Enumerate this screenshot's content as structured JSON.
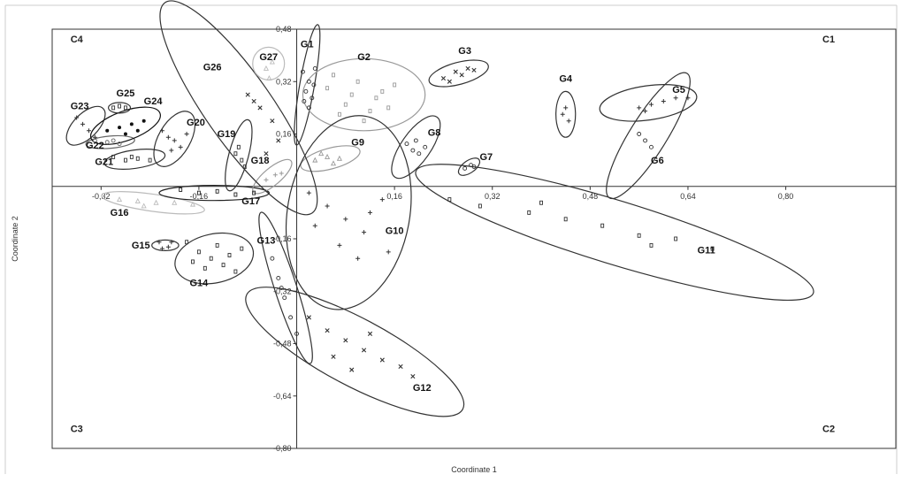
{
  "chart_data": {
    "type": "scatter",
    "title": "",
    "xlabel": "Coordinate 1",
    "ylabel": "Coordinate 2",
    "xlim": [
      -0.4,
      0.98
    ],
    "ylim": [
      -0.8,
      0.48
    ],
    "x_ticks": [
      {
        "v": -0.32,
        "label": "-0,32"
      },
      {
        "v": -0.16,
        "label": "-0,16"
      },
      {
        "v": 0.16,
        "label": "0,16"
      },
      {
        "v": 0.32,
        "label": "0,32"
      },
      {
        "v": 0.48,
        "label": "0,48"
      },
      {
        "v": 0.64,
        "label": "0,64"
      },
      {
        "v": 0.8,
        "label": "0,80"
      }
    ],
    "y_ticks": [
      {
        "v": 0.48,
        "label": "0,48"
      },
      {
        "v": 0.32,
        "label": "0,32"
      },
      {
        "v": 0.16,
        "label": "0,16"
      },
      {
        "v": -0.16,
        "label": "-0,16"
      },
      {
        "v": -0.32,
        "label": "-0,32"
      },
      {
        "v": -0.48,
        "label": "-0,48"
      },
      {
        "v": -0.64,
        "label": "-0,64"
      },
      {
        "v": -0.8,
        "label": "-0,80"
      }
    ],
    "quadrants": [
      {
        "label": "C1",
        "x": 0.86,
        "y": 0.44
      },
      {
        "label": "C2",
        "x": 0.86,
        "y": -0.75
      },
      {
        "label": "C3",
        "x": -0.37,
        "y": -0.75
      },
      {
        "label": "C4",
        "x": -0.37,
        "y": 0.44
      }
    ],
    "groups": [
      {
        "name": "G1",
        "cx": 0.017,
        "cy": 0.31,
        "rx": 0.1,
        "ry": 0.012,
        "angle": -80,
        "color": "#333333",
        "label_x": 0.017,
        "label_y": 0.425,
        "marker": "circle",
        "points": [
          [
            0.01,
            0.35
          ],
          [
            0.02,
            0.32
          ],
          [
            0.015,
            0.29
          ],
          [
            0.025,
            0.27
          ],
          [
            0.012,
            0.26
          ],
          [
            0.03,
            0.36
          ],
          [
            0.02,
            0.24
          ],
          [
            0.028,
            0.31
          ]
        ]
      },
      {
        "name": "G2",
        "cx": 0.11,
        "cy": 0.28,
        "rx": 0.1,
        "ry": 0.11,
        "angle": 0,
        "color": "#999999",
        "label_x": 0.11,
        "label_y": 0.385,
        "marker": "rect",
        "points": [
          [
            0.05,
            0.3
          ],
          [
            0.08,
            0.25
          ],
          [
            0.1,
            0.32
          ],
          [
            0.13,
            0.27
          ],
          [
            0.15,
            0.24
          ],
          [
            0.07,
            0.22
          ],
          [
            0.11,
            0.2
          ],
          [
            0.14,
            0.29
          ],
          [
            0.09,
            0.28
          ],
          [
            0.16,
            0.31
          ],
          [
            0.06,
            0.34
          ],
          [
            0.12,
            0.23
          ]
        ]
      },
      {
        "name": "G3",
        "cx": 0.265,
        "cy": 0.345,
        "rx": 0.05,
        "ry": 0.018,
        "angle": -15,
        "color": "#333333",
        "label_x": 0.275,
        "label_y": 0.405,
        "marker": "x",
        "points": [
          [
            0.24,
            0.33
          ],
          [
            0.26,
            0.35
          ],
          [
            0.27,
            0.34
          ],
          [
            0.28,
            0.36
          ],
          [
            0.25,
            0.32
          ],
          [
            0.29,
            0.355
          ]
        ]
      },
      {
        "name": "G4",
        "cx": 0.44,
        "cy": 0.22,
        "rx": 0.016,
        "ry": 0.07,
        "angle": 0,
        "color": "#333333",
        "label_x": 0.44,
        "label_y": 0.32,
        "marker": "plus",
        "points": [
          [
            0.44,
            0.24
          ],
          [
            0.445,
            0.2
          ],
          [
            0.435,
            0.22
          ]
        ]
      },
      {
        "name": "G5",
        "cx": 0.575,
        "cy": 0.255,
        "rx": 0.08,
        "ry": 0.028,
        "angle": -8,
        "color": "#333333",
        "label_x": 0.625,
        "label_y": 0.285,
        "marker": "plus",
        "points": [
          [
            0.56,
            0.24
          ],
          [
            0.58,
            0.25
          ],
          [
            0.6,
            0.26
          ],
          [
            0.62,
            0.27
          ],
          [
            0.64,
            0.27
          ],
          [
            0.57,
            0.23
          ]
        ]
      },
      {
        "name": "G6",
        "cx": 0.575,
        "cy": 0.155,
        "rx": 0.12,
        "ry": 0.03,
        "angle": -58,
        "color": "#333333",
        "label_x": 0.59,
        "label_y": 0.07,
        "marker": "circle",
        "points": [
          [
            0.56,
            0.16
          ],
          [
            0.57,
            0.14
          ],
          [
            0.58,
            0.12
          ]
        ]
      },
      {
        "name": "G7",
        "cx": 0.282,
        "cy": 0.06,
        "rx": 0.02,
        "ry": 0.01,
        "angle": -35,
        "color": "#333333",
        "label_x": 0.31,
        "label_y": 0.08,
        "marker": "circle",
        "points": [
          [
            0.275,
            0.055
          ],
          [
            0.285,
            0.065
          ],
          [
            0.29,
            0.06
          ]
        ]
      },
      {
        "name": "G8",
        "cx": 0.195,
        "cy": 0.12,
        "rx": 0.06,
        "ry": 0.024,
        "angle": -55,
        "color": "#333333",
        "label_x": 0.225,
        "label_y": 0.155,
        "marker": "circle",
        "points": [
          [
            0.18,
            0.13
          ],
          [
            0.19,
            0.11
          ],
          [
            0.2,
            0.1
          ],
          [
            0.21,
            0.12
          ],
          [
            0.195,
            0.14
          ]
        ]
      },
      {
        "name": "G9",
        "cx": 0.055,
        "cy": 0.085,
        "rx": 0.05,
        "ry": 0.017,
        "angle": -15,
        "color": "#999999",
        "label_x": 0.1,
        "label_y": 0.125,
        "marker": "triangle",
        "points": [
          [
            0.03,
            0.08
          ],
          [
            0.05,
            0.09
          ],
          [
            0.07,
            0.085
          ],
          [
            0.06,
            0.07
          ],
          [
            0.04,
            0.1
          ]
        ]
      },
      {
        "name": "G10",
        "cx": 0.085,
        "cy": -0.08,
        "rx": 0.16,
        "ry": 0.1,
        "angle": -80,
        "color": "#333333",
        "label_x": 0.16,
        "label_y": -0.145,
        "marker": "plus",
        "points": [
          [
            0.02,
            -0.02
          ],
          [
            0.05,
            -0.06
          ],
          [
            0.08,
            -0.1
          ],
          [
            0.11,
            -0.14
          ],
          [
            0.14,
            -0.04
          ],
          [
            0.1,
            -0.22
          ],
          [
            0.07,
            -0.18
          ],
          [
            0.12,
            -0.08
          ],
          [
            0.03,
            -0.12
          ],
          [
            0.15,
            -0.2
          ]
        ]
      },
      {
        "name": "G11",
        "cx": 0.52,
        "cy": -0.14,
        "rx": 0.34,
        "ry": 0.052,
        "angle": 17,
        "color": "#333333",
        "label_x": 0.67,
        "label_y": -0.205,
        "marker": "rect",
        "points": [
          [
            0.25,
            -0.04
          ],
          [
            0.3,
            -0.06
          ],
          [
            0.38,
            -0.08
          ],
          [
            0.44,
            -0.1
          ],
          [
            0.5,
            -0.12
          ],
          [
            0.56,
            -0.15
          ],
          [
            0.62,
            -0.16
          ],
          [
            0.68,
            -0.19
          ],
          [
            0.4,
            -0.05
          ],
          [
            0.58,
            -0.18
          ]
        ]
      },
      {
        "name": "G12",
        "cx": 0.095,
        "cy": -0.505,
        "rx": 0.2,
        "ry": 0.055,
        "angle": 28,
        "color": "#333333",
        "label_x": 0.205,
        "label_y": -0.625,
        "marker": "x",
        "points": [
          [
            0.02,
            -0.4
          ],
          [
            0.05,
            -0.44
          ],
          [
            0.08,
            -0.47
          ],
          [
            0.11,
            -0.5
          ],
          [
            0.14,
            -0.53
          ],
          [
            0.17,
            -0.55
          ],
          [
            0.19,
            -0.58
          ],
          [
            0.06,
            -0.52
          ],
          [
            0.12,
            -0.45
          ],
          [
            0.09,
            -0.56
          ]
        ]
      },
      {
        "name": "G13",
        "cx": -0.018,
        "cy": -0.31,
        "rx": 0.13,
        "ry": 0.018,
        "angle": 72,
        "color": "#333333",
        "label_x": -0.05,
        "label_y": -0.175,
        "marker": "circle",
        "points": [
          [
            -0.04,
            -0.22
          ],
          [
            -0.03,
            -0.28
          ],
          [
            -0.02,
            -0.34
          ],
          [
            -0.01,
            -0.4
          ],
          [
            0.0,
            -0.45
          ],
          [
            -0.025,
            -0.31
          ]
        ]
      },
      {
        "name": "G14",
        "cx": -0.135,
        "cy": -0.22,
        "rx": 0.065,
        "ry": 0.04,
        "angle": -12,
        "color": "#333333",
        "label_x": -0.16,
        "label_y": -0.305,
        "marker": "rect",
        "points": [
          [
            -0.18,
            -0.17
          ],
          [
            -0.16,
            -0.2
          ],
          [
            -0.14,
            -0.22
          ],
          [
            -0.12,
            -0.24
          ],
          [
            -0.1,
            -0.26
          ],
          [
            -0.15,
            -0.25
          ],
          [
            -0.13,
            -0.18
          ],
          [
            -0.11,
            -0.21
          ],
          [
            -0.17,
            -0.23
          ],
          [
            -0.09,
            -0.19
          ]
        ]
      },
      {
        "name": "G15",
        "cx": -0.215,
        "cy": -0.18,
        "rx": 0.022,
        "ry": 0.016,
        "angle": 0,
        "color": "#333333",
        "label_x": -0.255,
        "label_y": -0.19,
        "marker": "plus",
        "points": [
          [
            -0.225,
            -0.17
          ],
          [
            -0.21,
            -0.185
          ],
          [
            -0.205,
            -0.17
          ],
          [
            -0.22,
            -0.19
          ]
        ]
      },
      {
        "name": "G16",
        "cx": -0.235,
        "cy": -0.05,
        "rx": 0.085,
        "ry": 0.014,
        "angle": 8,
        "color": "#bbbbbb",
        "label_x": -0.29,
        "label_y": -0.09,
        "marker": "triangle",
        "points": [
          [
            -0.29,
            -0.04
          ],
          [
            -0.26,
            -0.045
          ],
          [
            -0.23,
            -0.05
          ],
          [
            -0.2,
            -0.05
          ],
          [
            -0.17,
            -0.055
          ],
          [
            -0.25,
            -0.06
          ]
        ]
      },
      {
        "name": "G17",
        "cx": -0.135,
        "cy": -0.02,
        "rx": 0.09,
        "ry": 0.023,
        "angle": 0,
        "color": "#222222",
        "label_x": -0.075,
        "label_y": -0.055,
        "marker": "rect",
        "points": [
          [
            -0.19,
            -0.01
          ],
          [
            -0.16,
            -0.02
          ],
          [
            -0.13,
            -0.015
          ],
          [
            -0.1,
            -0.025
          ],
          [
            -0.07,
            -0.02
          ]
        ]
      },
      {
        "name": "G18",
        "cx": -0.04,
        "cy": 0.03,
        "rx": 0.04,
        "ry": 0.014,
        "angle": -40,
        "color": "#999999",
        "label_x": -0.06,
        "label_y": 0.07,
        "marker": "plus",
        "points": [
          [
            -0.05,
            0.02
          ],
          [
            -0.035,
            0.035
          ],
          [
            -0.025,
            0.04
          ]
        ]
      },
      {
        "name": "G19",
        "cx": -0.095,
        "cy": 0.095,
        "rx": 0.06,
        "ry": 0.016,
        "angle": -75,
        "color": "#333333",
        "label_x": -0.115,
        "label_y": 0.15,
        "marker": "rect",
        "points": [
          [
            -0.1,
            0.1
          ],
          [
            -0.09,
            0.08
          ],
          [
            -0.095,
            0.12
          ],
          [
            -0.085,
            0.06
          ]
        ]
      },
      {
        "name": "G20",
        "cx": -0.2,
        "cy": 0.145,
        "rx": 0.05,
        "ry": 0.026,
        "angle": -60,
        "color": "#333333",
        "label_x": -0.165,
        "label_y": 0.185,
        "marker": "plus",
        "points": [
          [
            -0.22,
            0.17
          ],
          [
            -0.2,
            0.14
          ],
          [
            -0.19,
            0.12
          ],
          [
            -0.21,
            0.15
          ],
          [
            -0.18,
            0.16
          ],
          [
            -0.205,
            0.11
          ]
        ]
      },
      {
        "name": "G21",
        "cx": -0.265,
        "cy": 0.083,
        "rx": 0.05,
        "ry": 0.015,
        "angle": -8,
        "color": "#333333",
        "label_x": -0.315,
        "label_y": 0.065,
        "marker": "rect",
        "points": [
          [
            -0.3,
            0.09
          ],
          [
            -0.28,
            0.08
          ],
          [
            -0.26,
            0.085
          ],
          [
            -0.24,
            0.08
          ],
          [
            -0.27,
            0.09
          ]
        ]
      },
      {
        "name": "G22",
        "cx": -0.305,
        "cy": 0.135,
        "rx": 0.04,
        "ry": 0.01,
        "angle": -5,
        "color": "#666666",
        "label_x": -0.33,
        "label_y": 0.115,
        "marker": "circle",
        "points": [
          [
            -0.33,
            0.14
          ],
          [
            -0.31,
            0.135
          ],
          [
            -0.29,
            0.13
          ],
          [
            -0.3,
            0.14
          ]
        ]
      },
      {
        "name": "G23",
        "cx": -0.345,
        "cy": 0.185,
        "rx": 0.04,
        "ry": 0.02,
        "angle": -45,
        "color": "#333333",
        "label_x": -0.355,
        "label_y": 0.235,
        "marker": "plus",
        "points": [
          [
            -0.36,
            0.21
          ],
          [
            -0.35,
            0.19
          ],
          [
            -0.34,
            0.17
          ],
          [
            -0.33,
            0.15
          ]
        ]
      },
      {
        "name": "G24",
        "cx": -0.28,
        "cy": 0.185,
        "rx": 0.06,
        "ry": 0.024,
        "angle": -20,
        "color": "#111111",
        "label_x": -0.235,
        "label_y": 0.25,
        "marker": "dot",
        "points": [
          [
            -0.31,
            0.17
          ],
          [
            -0.29,
            0.18
          ],
          [
            -0.27,
            0.19
          ],
          [
            -0.25,
            0.2
          ],
          [
            -0.28,
            0.16
          ],
          [
            -0.26,
            0.17
          ]
        ]
      },
      {
        "name": "G25",
        "cx": -0.29,
        "cy": 0.24,
        "rx": 0.018,
        "ry": 0.009,
        "angle": 0,
        "color": "#333333",
        "label_x": -0.28,
        "label_y": 0.275,
        "marker": "rect",
        "points": [
          [
            -0.3,
            0.24
          ],
          [
            -0.29,
            0.245
          ],
          [
            -0.28,
            0.24
          ]
        ]
      },
      {
        "name": "G26",
        "cx": -0.095,
        "cy": 0.24,
        "rx": 0.21,
        "ry": 0.055,
        "angle": 55,
        "color": "#333333",
        "label_x": -0.138,
        "label_y": 0.355,
        "marker": "x",
        "points": [
          [
            -0.08,
            0.28
          ],
          [
            -0.06,
            0.24
          ],
          [
            -0.04,
            0.2
          ],
          [
            -0.03,
            0.14
          ],
          [
            -0.05,
            0.1
          ],
          [
            -0.07,
            0.26
          ]
        ]
      },
      {
        "name": "G27",
        "cx": -0.046,
        "cy": 0.375,
        "rx": 0.026,
        "ry": 0.05,
        "angle": 0,
        "color": "#bbbbbb",
        "label_x": -0.046,
        "label_y": 0.385,
        "marker": "triangle",
        "points": [
          [
            -0.05,
            0.36
          ],
          [
            -0.045,
            0.33
          ],
          [
            -0.04,
            0.38
          ]
        ]
      }
    ]
  }
}
